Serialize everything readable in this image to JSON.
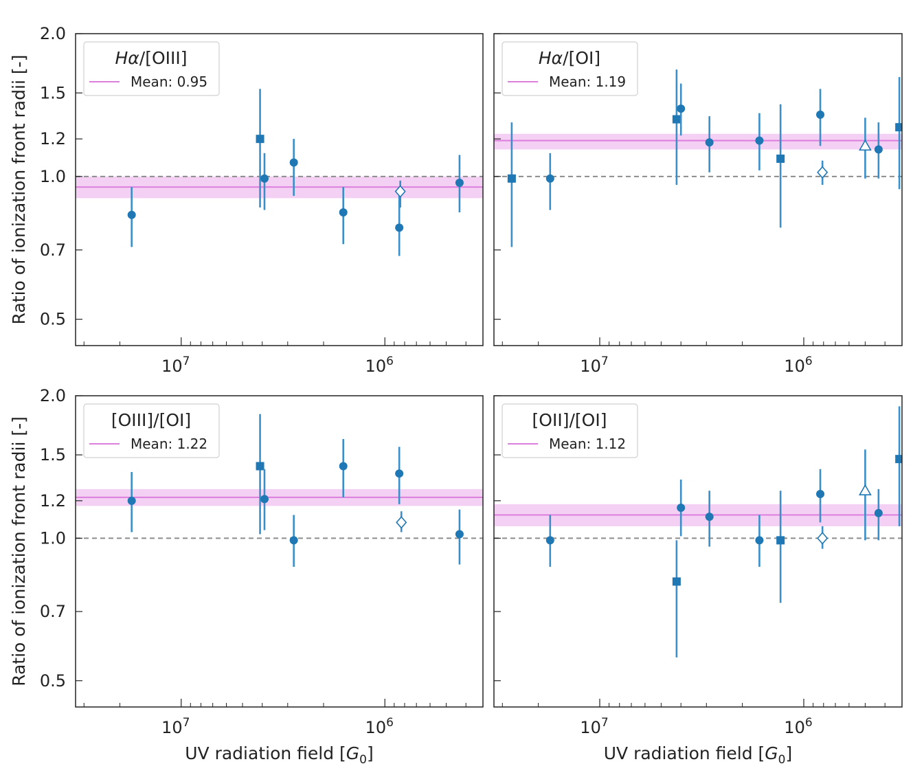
{
  "chart_data": [
    {
      "type": "scatter",
      "panel": "top-left",
      "legend_title_prefix": "Hα",
      "legend_title_suffix": "/[OIII]",
      "mean_label": "Mean: 0.95",
      "mean": 0.95,
      "mean_band": [
        0.9,
        1.0
      ],
      "reference_line": 1.0,
      "xscale": "log",
      "xreversed": true,
      "xlim": [
        33000000,
        330000
      ],
      "yscale": "log",
      "ylim": [
        0.44,
        2.0
      ],
      "xticks": [
        {
          "value": 10000000,
          "base": "10",
          "exp": "7"
        },
        {
          "value": 1000000,
          "base": "10",
          "exp": "6"
        }
      ],
      "yticks": [
        {
          "value": 0.5,
          "label": "0.5"
        },
        {
          "value": 0.7,
          "label": "0.7"
        },
        {
          "value": 1.0,
          "label": "1.0"
        },
        {
          "value": 1.2,
          "label": "1.2"
        },
        {
          "value": 1.5,
          "label": "1.5"
        },
        {
          "value": 2.0,
          "label": "2.0"
        }
      ],
      "ylabel": "Ratio of ionization front radii [-]",
      "xlabel": "",
      "points": [
        {
          "x": 17500000,
          "y": 0.83,
          "lo": 0.71,
          "hi": 0.95,
          "marker": "circle"
        },
        {
          "x": 4100000,
          "y": 1.2,
          "lo": 0.86,
          "hi": 1.53,
          "marker": "square"
        },
        {
          "x": 3900000,
          "y": 0.99,
          "lo": 0.85,
          "hi": 1.12,
          "marker": "circle"
        },
        {
          "x": 2800000,
          "y": 1.07,
          "lo": 0.91,
          "hi": 1.2,
          "marker": "circle"
        },
        {
          "x": 1600000,
          "y": 0.84,
          "lo": 0.72,
          "hi": 0.95,
          "marker": "circle"
        },
        {
          "x": 850000,
          "y": 0.78,
          "lo": 0.68,
          "hi": 0.92,
          "marker": "circle"
        },
        {
          "x": 840000,
          "y": 0.93,
          "lo": 0.86,
          "hi": 0.98,
          "marker": "diamond-open"
        },
        {
          "x": 430000,
          "y": 0.97,
          "lo": 0.84,
          "hi": 1.11,
          "marker": "circle"
        }
      ]
    },
    {
      "type": "scatter",
      "panel": "top-right",
      "legend_title_prefix": "Hα",
      "legend_title_suffix": "/[OI]",
      "mean_label": "Mean: 1.19",
      "mean": 1.19,
      "mean_band": [
        1.14,
        1.23
      ],
      "reference_line": 1.0,
      "xscale": "log",
      "xreversed": true,
      "xlim": [
        33000000,
        330000
      ],
      "yscale": "log",
      "ylim": [
        0.44,
        2.0
      ],
      "xticks": [
        {
          "value": 10000000,
          "base": "10",
          "exp": "7"
        },
        {
          "value": 1000000,
          "base": "10",
          "exp": "6"
        }
      ],
      "yticks": [
        {
          "value": 0.5,
          "label": ""
        },
        {
          "value": 0.7,
          "label": ""
        },
        {
          "value": 1.0,
          "label": ""
        },
        {
          "value": 1.2,
          "label": ""
        },
        {
          "value": 1.5,
          "label": ""
        },
        {
          "value": 2.0,
          "label": ""
        }
      ],
      "ylabel": "",
      "xlabel": "",
      "points": [
        {
          "x": 27000000,
          "y": 0.99,
          "lo": 0.71,
          "hi": 1.3,
          "marker": "square"
        },
        {
          "x": 17500000,
          "y": 0.99,
          "lo": 0.85,
          "hi": 1.12,
          "marker": "circle"
        },
        {
          "x": 4200000,
          "y": 1.32,
          "lo": 0.96,
          "hi": 1.68,
          "marker": "square"
        },
        {
          "x": 4000000,
          "y": 1.39,
          "lo": 1.22,
          "hi": 1.57,
          "marker": "circle"
        },
        {
          "x": 2900000,
          "y": 1.18,
          "lo": 1.02,
          "hi": 1.34,
          "marker": "circle"
        },
        {
          "x": 1650000,
          "y": 1.19,
          "lo": 1.03,
          "hi": 1.36,
          "marker": "circle"
        },
        {
          "x": 1300000,
          "y": 1.09,
          "lo": 0.78,
          "hi": 1.42,
          "marker": "square"
        },
        {
          "x": 830000,
          "y": 1.35,
          "lo": 1.16,
          "hi": 1.53,
          "marker": "circle"
        },
        {
          "x": 810000,
          "y": 1.02,
          "lo": 0.96,
          "hi": 1.08,
          "marker": "diamond-open"
        },
        {
          "x": 500000,
          "y": 1.16,
          "lo": 0.99,
          "hi": 1.33,
          "marker": "triangle-open"
        },
        {
          "x": 430000,
          "y": 1.14,
          "lo": 0.99,
          "hi": 1.3,
          "marker": "circle"
        },
        {
          "x": 340000,
          "y": 1.27,
          "lo": 0.94,
          "hi": 1.62,
          "marker": "square"
        }
      ]
    },
    {
      "type": "scatter",
      "panel": "bottom-left",
      "legend_title_prefix": "",
      "legend_title_suffix": "[OIII]/[OI]",
      "mean_label": "Mean: 1.22",
      "mean": 1.22,
      "mean_band": [
        1.17,
        1.27
      ],
      "reference_line": 1.0,
      "xscale": "log",
      "xreversed": true,
      "xlim": [
        33000000,
        330000
      ],
      "yscale": "log",
      "ylim": [
        0.44,
        2.0
      ],
      "xticks": [
        {
          "value": 10000000,
          "base": "10",
          "exp": "7"
        },
        {
          "value": 1000000,
          "base": "10",
          "exp": "6"
        }
      ],
      "yticks": [
        {
          "value": 0.5,
          "label": "0.5"
        },
        {
          "value": 0.7,
          "label": "0.7"
        },
        {
          "value": 1.0,
          "label": "1.0"
        },
        {
          "value": 1.2,
          "label": "1.2"
        },
        {
          "value": 1.5,
          "label": "1.5"
        },
        {
          "value": 2.0,
          "label": "2.0"
        }
      ],
      "ylabel": "Ratio of ionization front radii [-]",
      "xlabel_prefix": "UV radiation field [",
      "xlabel_sym": "G",
      "xlabel_sub": "0",
      "xlabel_suffix": "]",
      "points": [
        {
          "x": 17500000,
          "y": 1.2,
          "lo": 1.03,
          "hi": 1.38,
          "marker": "circle"
        },
        {
          "x": 4100000,
          "y": 1.42,
          "lo": 1.02,
          "hi": 1.83,
          "marker": "square"
        },
        {
          "x": 3900000,
          "y": 1.21,
          "lo": 1.04,
          "hi": 1.4,
          "marker": "circle"
        },
        {
          "x": 2800000,
          "y": 0.99,
          "lo": 0.87,
          "hi": 1.12,
          "marker": "circle"
        },
        {
          "x": 1600000,
          "y": 1.42,
          "lo": 1.22,
          "hi": 1.62,
          "marker": "circle"
        },
        {
          "x": 850000,
          "y": 1.37,
          "lo": 1.18,
          "hi": 1.56,
          "marker": "circle"
        },
        {
          "x": 830000,
          "y": 1.08,
          "lo": 1.03,
          "hi": 1.14,
          "marker": "diamond-open"
        },
        {
          "x": 430000,
          "y": 1.02,
          "lo": 0.88,
          "hi": 1.15,
          "marker": "circle"
        }
      ]
    },
    {
      "type": "scatter",
      "panel": "bottom-right",
      "legend_title_prefix": "",
      "legend_title_suffix": "[OII]/[OI]",
      "mean_label": "Mean: 1.12",
      "mean": 1.12,
      "mean_band": [
        1.06,
        1.18
      ],
      "reference_line": 1.0,
      "xscale": "log",
      "xreversed": true,
      "xlim": [
        33000000,
        330000
      ],
      "yscale": "log",
      "ylim": [
        0.44,
        2.0
      ],
      "xticks": [
        {
          "value": 10000000,
          "base": "10",
          "exp": "7"
        },
        {
          "value": 1000000,
          "base": "10",
          "exp": "6"
        }
      ],
      "yticks": [
        {
          "value": 0.5,
          "label": ""
        },
        {
          "value": 0.7,
          "label": ""
        },
        {
          "value": 1.0,
          "label": ""
        },
        {
          "value": 1.2,
          "label": ""
        },
        {
          "value": 1.5,
          "label": ""
        },
        {
          "value": 2.0,
          "label": ""
        }
      ],
      "ylabel": "",
      "xlabel_prefix": "UV radiation field [",
      "xlabel_sym": "G",
      "xlabel_sub": "0",
      "xlabel_suffix": "]",
      "points": [
        {
          "x": 17500000,
          "y": 0.99,
          "lo": 0.87,
          "hi": 1.12,
          "marker": "circle"
        },
        {
          "x": 4200000,
          "y": 0.81,
          "lo": 0.56,
          "hi": 0.99,
          "marker": "square"
        },
        {
          "x": 4000000,
          "y": 1.16,
          "lo": 1.01,
          "hi": 1.33,
          "marker": "circle"
        },
        {
          "x": 2900000,
          "y": 1.11,
          "lo": 0.96,
          "hi": 1.26,
          "marker": "circle"
        },
        {
          "x": 1650000,
          "y": 0.99,
          "lo": 0.87,
          "hi": 1.12,
          "marker": "circle"
        },
        {
          "x": 1300000,
          "y": 0.99,
          "lo": 0.73,
          "hi": 1.26,
          "marker": "square"
        },
        {
          "x": 830000,
          "y": 1.24,
          "lo": 1.08,
          "hi": 1.4,
          "marker": "circle"
        },
        {
          "x": 810000,
          "y": 1.0,
          "lo": 0.95,
          "hi": 1.06,
          "marker": "diamond-open"
        },
        {
          "x": 500000,
          "y": 1.26,
          "lo": 0.99,
          "hi": 1.54,
          "marker": "triangle-open"
        },
        {
          "x": 430000,
          "y": 1.13,
          "lo": 0.99,
          "hi": 1.27,
          "marker": "circle"
        },
        {
          "x": 340000,
          "y": 1.47,
          "lo": 1.06,
          "hi": 1.9,
          "marker": "square"
        }
      ]
    }
  ],
  "colors": {
    "points": "#1f77b4",
    "errorbars": "#3a8fc8",
    "mean_line": "#dc7edc",
    "mean_band": "#f4d0f4",
    "reference_line": "#8c8c8c",
    "frame": "#222222"
  }
}
